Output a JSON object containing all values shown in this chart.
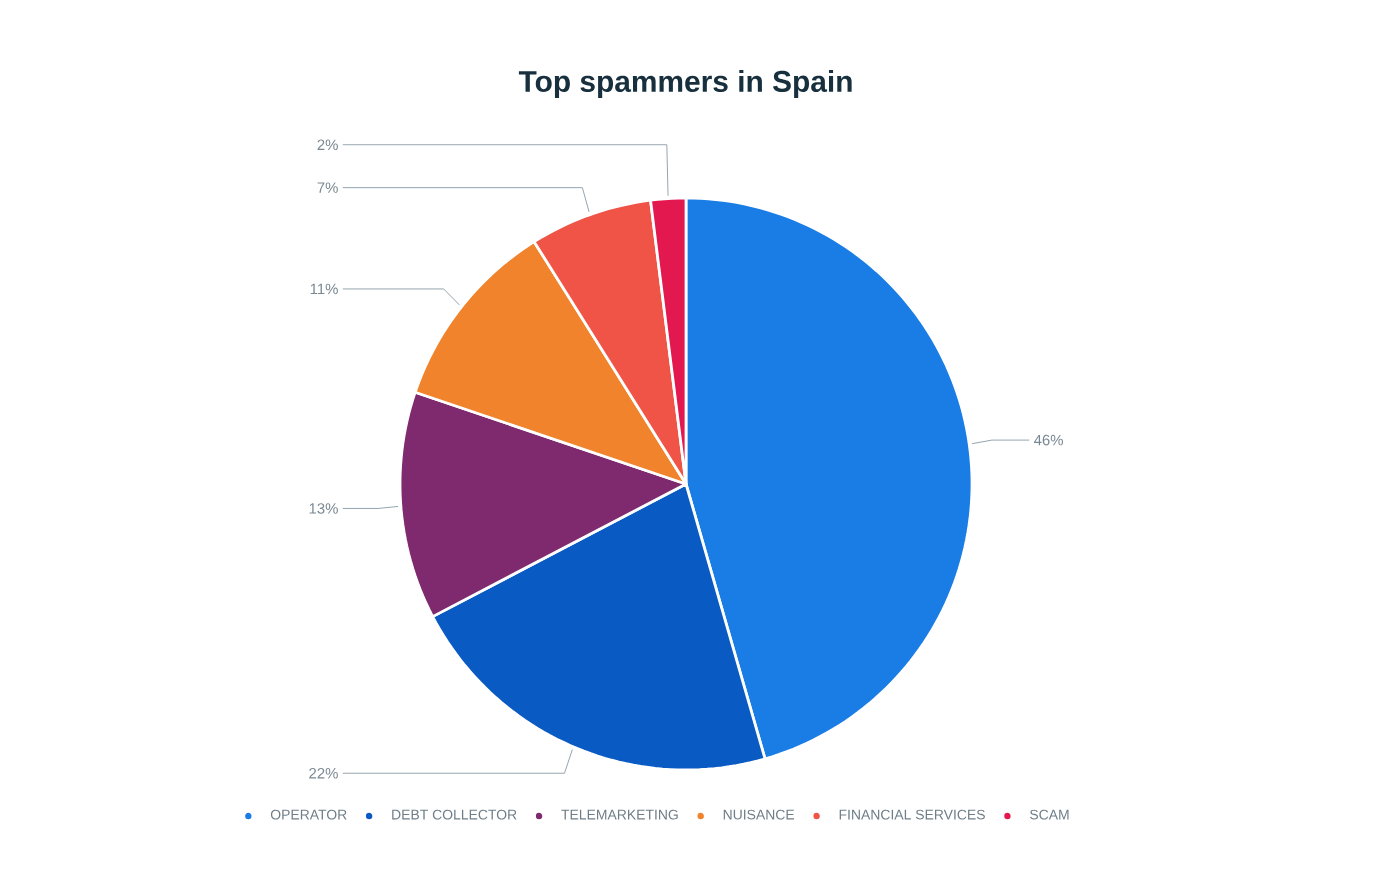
{
  "chart_data": {
    "type": "pie",
    "title": "Top spammers in Spain",
    "categories": [
      "OPERATOR",
      "DEBT COLLECTOR",
      "TELEMARKETING",
      "NUISANCE",
      "FINANCIAL SERVICES",
      "SCAM"
    ],
    "values": [
      46,
      22,
      13,
      11,
      7,
      2
    ],
    "value_labels": [
      "46%",
      "22%",
      "13%",
      "11%",
      "7%",
      "2%"
    ],
    "colors": [
      "#1a7de6",
      "#0a5ac4",
      "#7f2a6f",
      "#f0832b",
      "#ef5447",
      "#e3184f"
    ],
    "legend": "bottom"
  }
}
